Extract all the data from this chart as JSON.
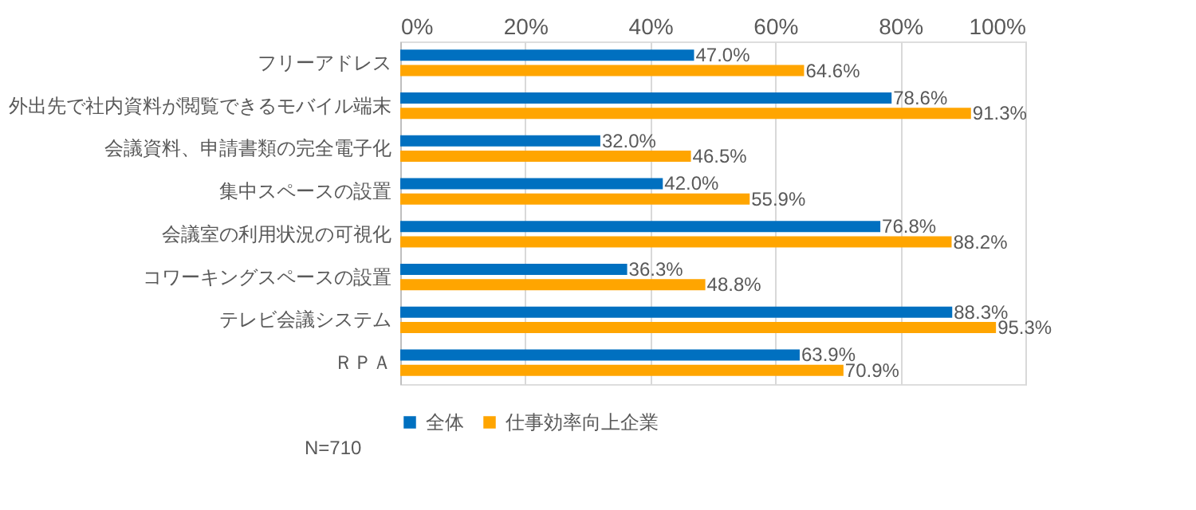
{
  "chart_data": {
    "type": "bar",
    "orientation": "horizontal",
    "categories": [
      "フリーアドレス",
      "外出先で社内資料が閲覧できるモバイル端末",
      "会議資料、申請書類の完全電子化",
      "集中スペースの設置",
      "会議室の利用状況の可視化",
      "コワーキングスペースの設置",
      "テレビ会議システム",
      "ＲＰＡ"
    ],
    "series": [
      {
        "name": "全体",
        "color": "#0070c0",
        "values": [
          47.0,
          78.6,
          32.0,
          42.0,
          76.8,
          36.3,
          88.3,
          63.9
        ],
        "value_labels": [
          "47.0%",
          "78.6%",
          "32.0%",
          "42.0%",
          "76.8%",
          "36.3%",
          "88.3%",
          "63.9%"
        ]
      },
      {
        "name": "仕事効率向上企業",
        "color": "#ffa500",
        "values": [
          64.6,
          91.3,
          46.5,
          55.9,
          88.2,
          48.8,
          95.3,
          70.9
        ],
        "value_labels": [
          "64.6%",
          "91.3%",
          "46.5%",
          "55.9%",
          "88.2%",
          "48.8%",
          "95.3%",
          "70.9%"
        ]
      }
    ],
    "xlim": [
      0,
      100
    ],
    "xticks": [
      {
        "value": 0,
        "label": "0%"
      },
      {
        "value": 20,
        "label": "20%"
      },
      {
        "value": 40,
        "label": "40%"
      },
      {
        "value": 60,
        "label": "60%"
      },
      {
        "value": 80,
        "label": "80%"
      },
      {
        "value": 100,
        "label": "100%"
      }
    ],
    "grid": "x",
    "legend": "bottom",
    "annotations": [
      "N=710"
    ]
  }
}
